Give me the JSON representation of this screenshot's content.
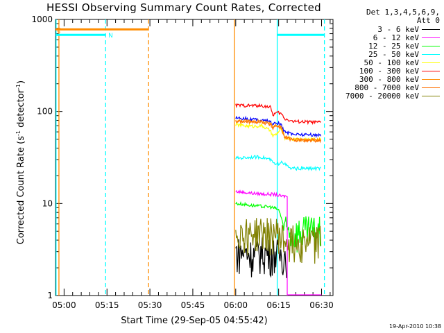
{
  "chart_data": {
    "type": "line",
    "title": "HESSI Observing Summary Count Rates, Corrected",
    "xlabel": "Start Time (29-Sep-05 04:55:42)",
    "ylabel_main": "Corrected Count Rate (s",
    "ylabel_sup1": "-1",
    "ylabel_mid": " detector",
    "ylabel_sup2": "-1",
    "ylabel_end": ")",
    "y_scale": "log",
    "ylim": [
      1,
      1000
    ],
    "xlim_minutes": [
      -3,
      42
    ],
    "x_ticks": [
      {
        "label": "05:00",
        "minutes": 0
      },
      {
        "label": "05:15",
        "minutes": 15
      },
      {
        "label": "05:30",
        "minutes": 30
      },
      {
        "label": "05:45",
        "minutes": 45
      },
      {
        "label": "06:00",
        "minutes": 60
      },
      {
        "label": "06:15",
        "minutes": 75
      },
      {
        "label": "06:30",
        "minutes": 90
      }
    ],
    "y_ticks": [
      {
        "label": "1",
        "value": 1
      },
      {
        "label": "10",
        "value": 10
      },
      {
        "label": "100",
        "value": 100
      },
      {
        "label": "1000",
        "value": 1000
      }
    ],
    "legend_header": [
      "Det 1,3,4,5,6,9,",
      "Att 0"
    ],
    "legend_position": "top-right-outside",
    "series": [
      {
        "name": "3 - 6 keV",
        "color": "#000000",
        "points": [
          [
            60,
            3
          ],
          [
            63,
            3
          ],
          [
            66,
            2.8
          ],
          [
            69,
            3
          ],
          [
            72,
            2.9
          ],
          [
            74,
            3
          ],
          [
            75,
            2.7
          ],
          [
            76,
            2.9
          ],
          [
            77,
            2.8
          ],
          [
            78,
            2.8
          ]
        ]
      },
      {
        "name": "6 - 12 keV",
        "color": "#ff00ff",
        "points": [
          [
            60,
            13.5
          ],
          [
            63,
            13.2
          ],
          [
            66,
            12.9
          ],
          [
            69,
            12.7
          ],
          [
            72,
            12.6
          ],
          [
            74,
            12.5
          ],
          [
            75,
            12.2
          ],
          [
            76,
            12
          ],
          [
            77,
            12
          ],
          [
            78,
            12
          ]
        ]
      },
      {
        "name": "12 - 25 keV",
        "color": "#00ff00",
        "points": [
          [
            60,
            10
          ],
          [
            63,
            9.8
          ],
          [
            66,
            9.5
          ],
          [
            69,
            9.3
          ],
          [
            72,
            9.2
          ],
          [
            74,
            8.8
          ],
          [
            75,
            8.5
          ],
          [
            76,
            7
          ],
          [
            77,
            5
          ],
          [
            80,
            5
          ],
          [
            85,
            5
          ],
          [
            90,
            5
          ]
        ]
      },
      {
        "name": "25 - 50 keV",
        "color": "#00ffff",
        "points": [
          [
            60,
            31
          ],
          [
            63,
            31.5
          ],
          [
            66,
            32
          ],
          [
            69,
            32
          ],
          [
            72,
            30
          ],
          [
            73,
            28
          ],
          [
            74,
            26
          ],
          [
            75,
            27
          ],
          [
            76,
            29
          ],
          [
            77,
            27
          ],
          [
            79,
            24
          ],
          [
            82,
            24
          ],
          [
            86,
            24
          ],
          [
            90,
            24
          ]
        ]
      },
      {
        "name": "50 - 100 keV",
        "color": "#ffff00",
        "points": [
          [
            60,
            72
          ],
          [
            63,
            70
          ],
          [
            66,
            69
          ],
          [
            69,
            70
          ],
          [
            72,
            62
          ],
          [
            73,
            54
          ],
          [
            74,
            56
          ],
          [
            75,
            60
          ],
          [
            76,
            64
          ],
          [
            77,
            52
          ],
          [
            80,
            50
          ],
          [
            85,
            50
          ],
          [
            90,
            50
          ]
        ]
      },
      {
        "name": "100 - 300 keV",
        "color": "#ff0000",
        "points": [
          [
            60,
            117
          ],
          [
            63,
            116
          ],
          [
            66,
            116
          ],
          [
            69,
            115
          ],
          [
            72,
            112
          ],
          [
            73,
            92
          ],
          [
            74,
            96
          ],
          [
            75,
            97
          ],
          [
            76,
            94
          ],
          [
            77,
            84
          ],
          [
            80,
            78
          ],
          [
            85,
            77
          ],
          [
            90,
            76
          ]
        ]
      },
      {
        "name": "300 - 800 keV",
        "color": "#ff8c00",
        "points": [
          [
            60,
            79
          ],
          [
            63,
            79
          ],
          [
            66,
            78
          ],
          [
            69,
            78
          ],
          [
            72,
            74
          ],
          [
            73,
            68
          ],
          [
            74,
            72
          ],
          [
            75,
            71
          ],
          [
            76,
            68
          ],
          [
            77,
            53
          ],
          [
            80,
            50
          ],
          [
            85,
            49
          ],
          [
            90,
            49
          ]
        ]
      },
      {
        "name": "800 - 7000 keV",
        "color": "#ff6f00",
        "points": [
          [
            60,
            78
          ],
          [
            63,
            77
          ],
          [
            66,
            77
          ],
          [
            69,
            77
          ],
          [
            72,
            72
          ],
          [
            73,
            66
          ],
          [
            74,
            70
          ],
          [
            75,
            68
          ],
          [
            76,
            66
          ],
          [
            77,
            52
          ],
          [
            80,
            49
          ],
          [
            85,
            48
          ],
          [
            90,
            48
          ]
        ]
      },
      {
        "name": "7000 - 20000 keV",
        "color": "#808000",
        "points": [
          [
            60,
            5
          ],
          [
            63,
            4.9
          ],
          [
            66,
            4.9
          ],
          [
            69,
            4.9
          ],
          [
            72,
            4.8
          ],
          [
            74,
            4.8
          ],
          [
            75,
            4.8
          ],
          [
            76,
            4.2
          ],
          [
            77,
            4
          ],
          [
            80,
            4
          ],
          [
            85,
            4
          ],
          [
            90,
            4
          ]
        ]
      }
    ],
    "extra_lines": [
      {
        "name": "blue-background",
        "color": "#0000ff",
        "points": [
          [
            60,
            86
          ],
          [
            63,
            84
          ],
          [
            66,
            82
          ],
          [
            69,
            81
          ],
          [
            72,
            78
          ],
          [
            73,
            72
          ],
          [
            74,
            75
          ],
          [
            75,
            74
          ],
          [
            76,
            70
          ],
          [
            77,
            60
          ],
          [
            80,
            57
          ],
          [
            85,
            56
          ],
          [
            90,
            55
          ]
        ]
      }
    ],
    "flags": [
      {
        "label": "E",
        "color": "#ff8c00",
        "value": 780,
        "x_start": -3,
        "x_end": 29.5
      },
      {
        "label": "N",
        "color": "#00ffff",
        "value": 680,
        "x_start": -3,
        "x_end": 14.5
      },
      {
        "label": "",
        "color": "#00ffff",
        "value": 680,
        "x_start": 74.5,
        "x_end": 91
      }
    ],
    "vlines": [
      {
        "color": "#00ffff",
        "minutes": -2.8,
        "style": "solid"
      },
      {
        "color": "#ff8c00",
        "minutes": -1.8,
        "style": "solid"
      },
      {
        "color": "#00ffff",
        "minutes": 14.5,
        "style": "dashed"
      },
      {
        "color": "#ff8c00",
        "minutes": 29.5,
        "style": "dashed"
      },
      {
        "color": "#ff8c00",
        "minutes": 59.5,
        "style": "solid"
      },
      {
        "color": "#00ffff",
        "minutes": 74.5,
        "style": "solid"
      },
      {
        "color": "#00ffff",
        "minutes": 91,
        "style": "dashed"
      }
    ]
  },
  "footer_stamp": "19-Apr-2010 10:38"
}
